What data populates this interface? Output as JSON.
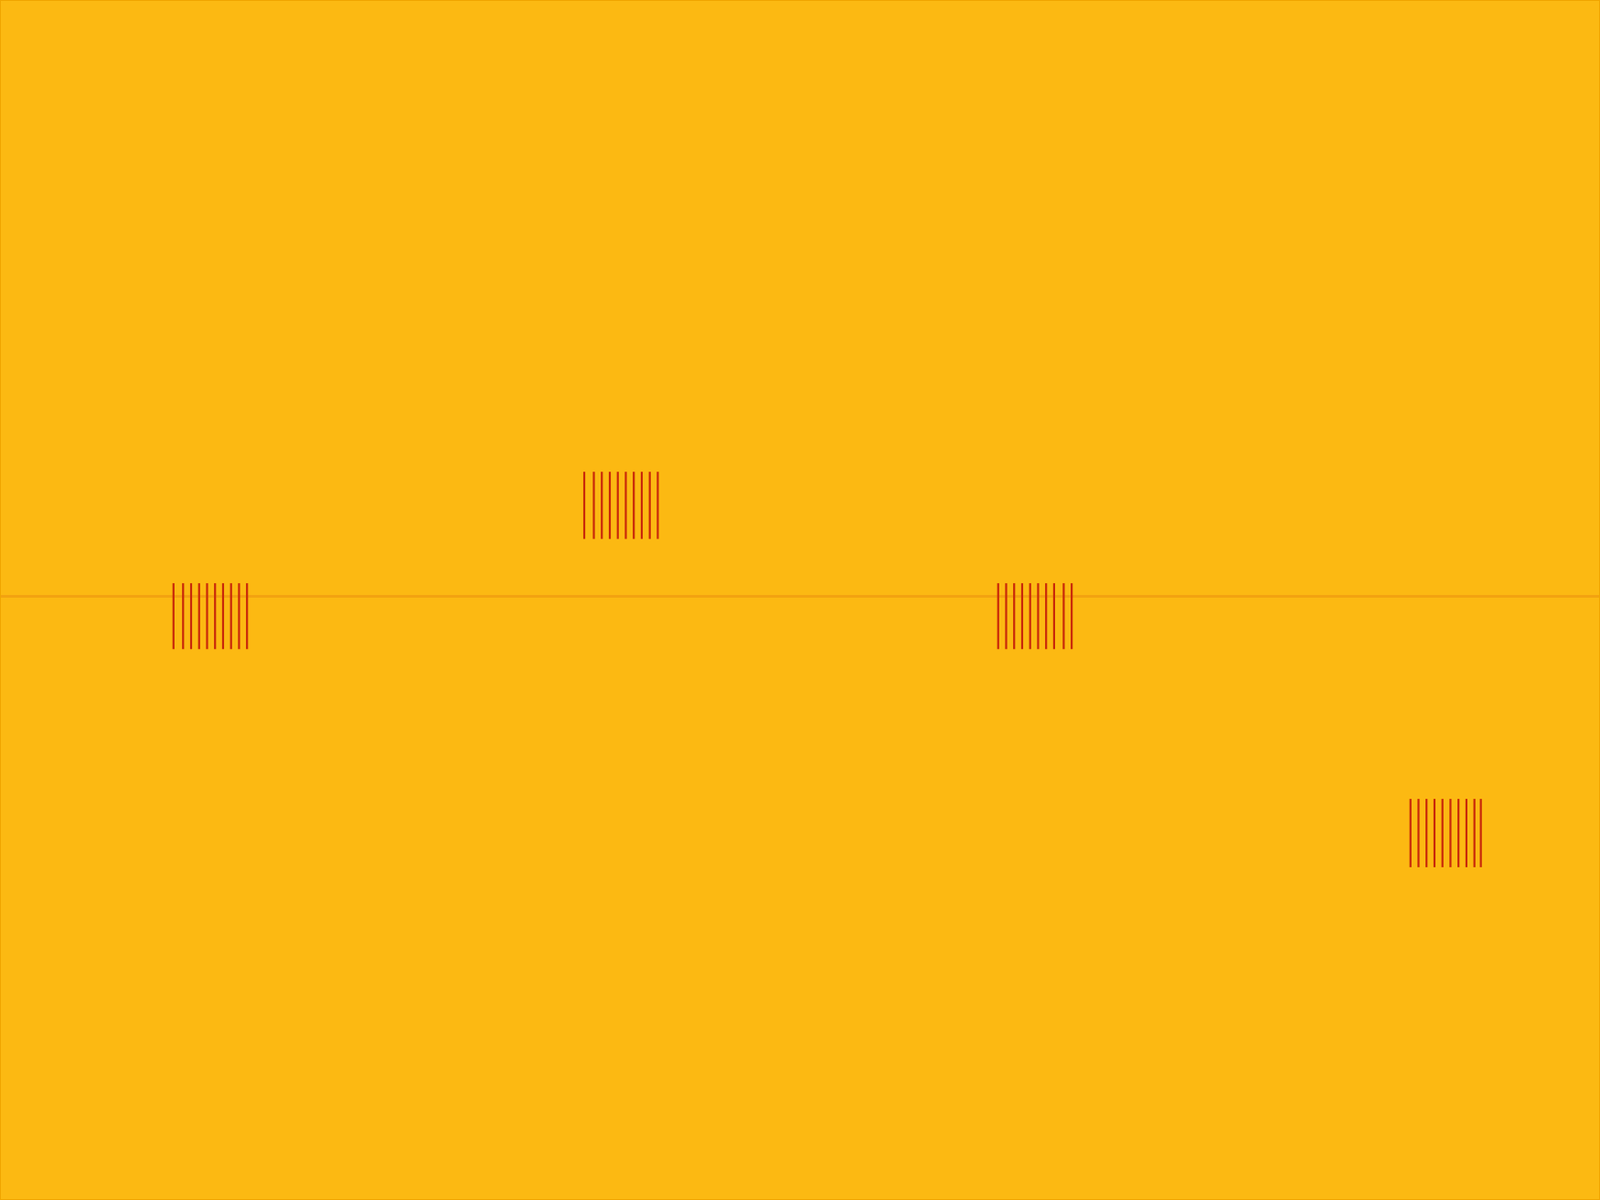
{
  "chart_data": {
    "type": "spectrogram",
    "xlim": [
      0,
      100
    ],
    "ylim": [
      0,
      100
    ],
    "tick_labels": false,
    "grid": false,
    "tone": {
      "y": 50.3,
      "color": "#f09a10"
    },
    "series": [
      {
        "color": "#c8280a",
        "y_low": 45.9,
        "y_high": 51.4,
        "x": [
          10.8,
          11.4,
          11.9,
          12.4,
          12.9,
          13.4,
          13.9,
          14.4,
          14.9,
          15.4
        ]
      },
      {
        "color": "#c8280a",
        "y_low": 55.1,
        "y_high": 60.7,
        "x": [
          36.5,
          37.1,
          37.6,
          38.1,
          38.6,
          39.1,
          39.6,
          40.1,
          40.6,
          41.1
        ]
      },
      {
        "color": "#c8280a",
        "y_low": 45.9,
        "y_high": 51.4,
        "x": [
          62.4,
          62.9,
          63.4,
          63.9,
          64.4,
          64.9,
          65.4,
          65.9,
          66.5,
          67.0
        ]
      },
      {
        "color": "#c8280a",
        "y_low": 27.7,
        "y_high": 33.4,
        "x": [
          88.2,
          88.7,
          89.2,
          89.7,
          90.2,
          90.7,
          91.2,
          91.7,
          92.2,
          92.6
        ]
      }
    ]
  }
}
